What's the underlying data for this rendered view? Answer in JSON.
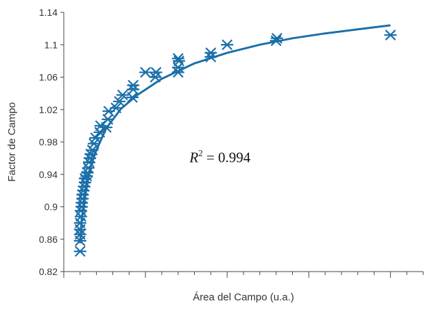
{
  "chart_data": {
    "type": "scatter",
    "xlabel": "Área del Campo (u.a.)",
    "ylabel": "Factor de Campo",
    "xlim": [
      0,
      22
    ],
    "ylim": [
      0.82,
      1.14
    ],
    "x_ticks_labeled": false,
    "y_ticks": [
      0.82,
      0.86,
      0.9,
      0.94,
      0.98,
      1.02,
      1.06,
      1.1,
      1.14
    ],
    "grid": false,
    "annotation": {
      "symbol": "R",
      "superscript": "2",
      "text": " = 0.994"
    },
    "colors": {
      "series": "#1a6fa8"
    },
    "series": [
      {
        "marker": "asterisk",
        "points": [
          [
            1.0,
            0.845
          ],
          [
            1.0,
            0.858
          ],
          [
            1.0,
            0.866
          ],
          [
            1.0,
            0.872
          ],
          [
            1.0,
            0.88
          ],
          [
            1.05,
            0.888
          ],
          [
            1.05,
            0.895
          ],
          [
            1.1,
            0.9
          ],
          [
            1.1,
            0.905
          ],
          [
            1.15,
            0.91
          ],
          [
            1.15,
            0.915
          ],
          [
            1.2,
            0.92
          ],
          [
            1.25,
            0.925
          ],
          [
            1.3,
            0.93
          ],
          [
            1.3,
            0.935
          ],
          [
            1.4,
            0.938
          ],
          [
            1.45,
            0.942
          ],
          [
            1.5,
            0.948
          ],
          [
            1.55,
            0.955
          ],
          [
            1.6,
            0.96
          ],
          [
            1.65,
            0.965
          ],
          [
            1.75,
            0.97
          ],
          [
            1.85,
            0.978
          ],
          [
            1.95,
            0.985
          ],
          [
            2.2,
            0.992
          ],
          [
            2.25,
            1.0
          ],
          [
            2.6,
            0.998
          ],
          [
            2.7,
            1.008
          ],
          [
            2.75,
            1.018
          ],
          [
            3.2,
            1.022
          ],
          [
            3.4,
            1.03
          ],
          [
            3.6,
            1.038
          ],
          [
            4.2,
            1.035
          ],
          [
            4.25,
            1.045
          ],
          [
            4.25,
            1.05
          ],
          [
            5.0,
            1.066
          ],
          [
            5.6,
            1.06
          ],
          [
            5.65,
            1.066
          ],
          [
            7.0,
            1.066
          ],
          [
            7.0,
            1.072
          ],
          [
            7.05,
            1.08
          ],
          [
            7.0,
            1.083
          ],
          [
            9.0,
            1.085
          ],
          [
            9.0,
            1.09
          ],
          [
            10.0,
            1.1
          ],
          [
            13.0,
            1.105
          ],
          [
            13.05,
            1.108
          ],
          [
            20.0,
            1.112
          ]
        ]
      }
    ],
    "fit": {
      "type": "logarithmic",
      "points": [
        [
          1.0,
          0.855
        ],
        [
          1.1,
          0.886
        ],
        [
          1.3,
          0.912
        ],
        [
          1.6,
          0.947
        ],
        [
          2.0,
          0.97
        ],
        [
          2.6,
          0.997
        ],
        [
          3.5,
          1.021
        ],
        [
          4.5,
          1.038
        ],
        [
          6.0,
          1.058
        ],
        [
          8.0,
          1.077
        ],
        [
          10.0,
          1.09
        ],
        [
          12.0,
          1.1
        ],
        [
          14.0,
          1.108
        ],
        [
          16.0,
          1.114
        ],
        [
          18.0,
          1.119
        ],
        [
          20.0,
          1.124
        ]
      ]
    }
  }
}
